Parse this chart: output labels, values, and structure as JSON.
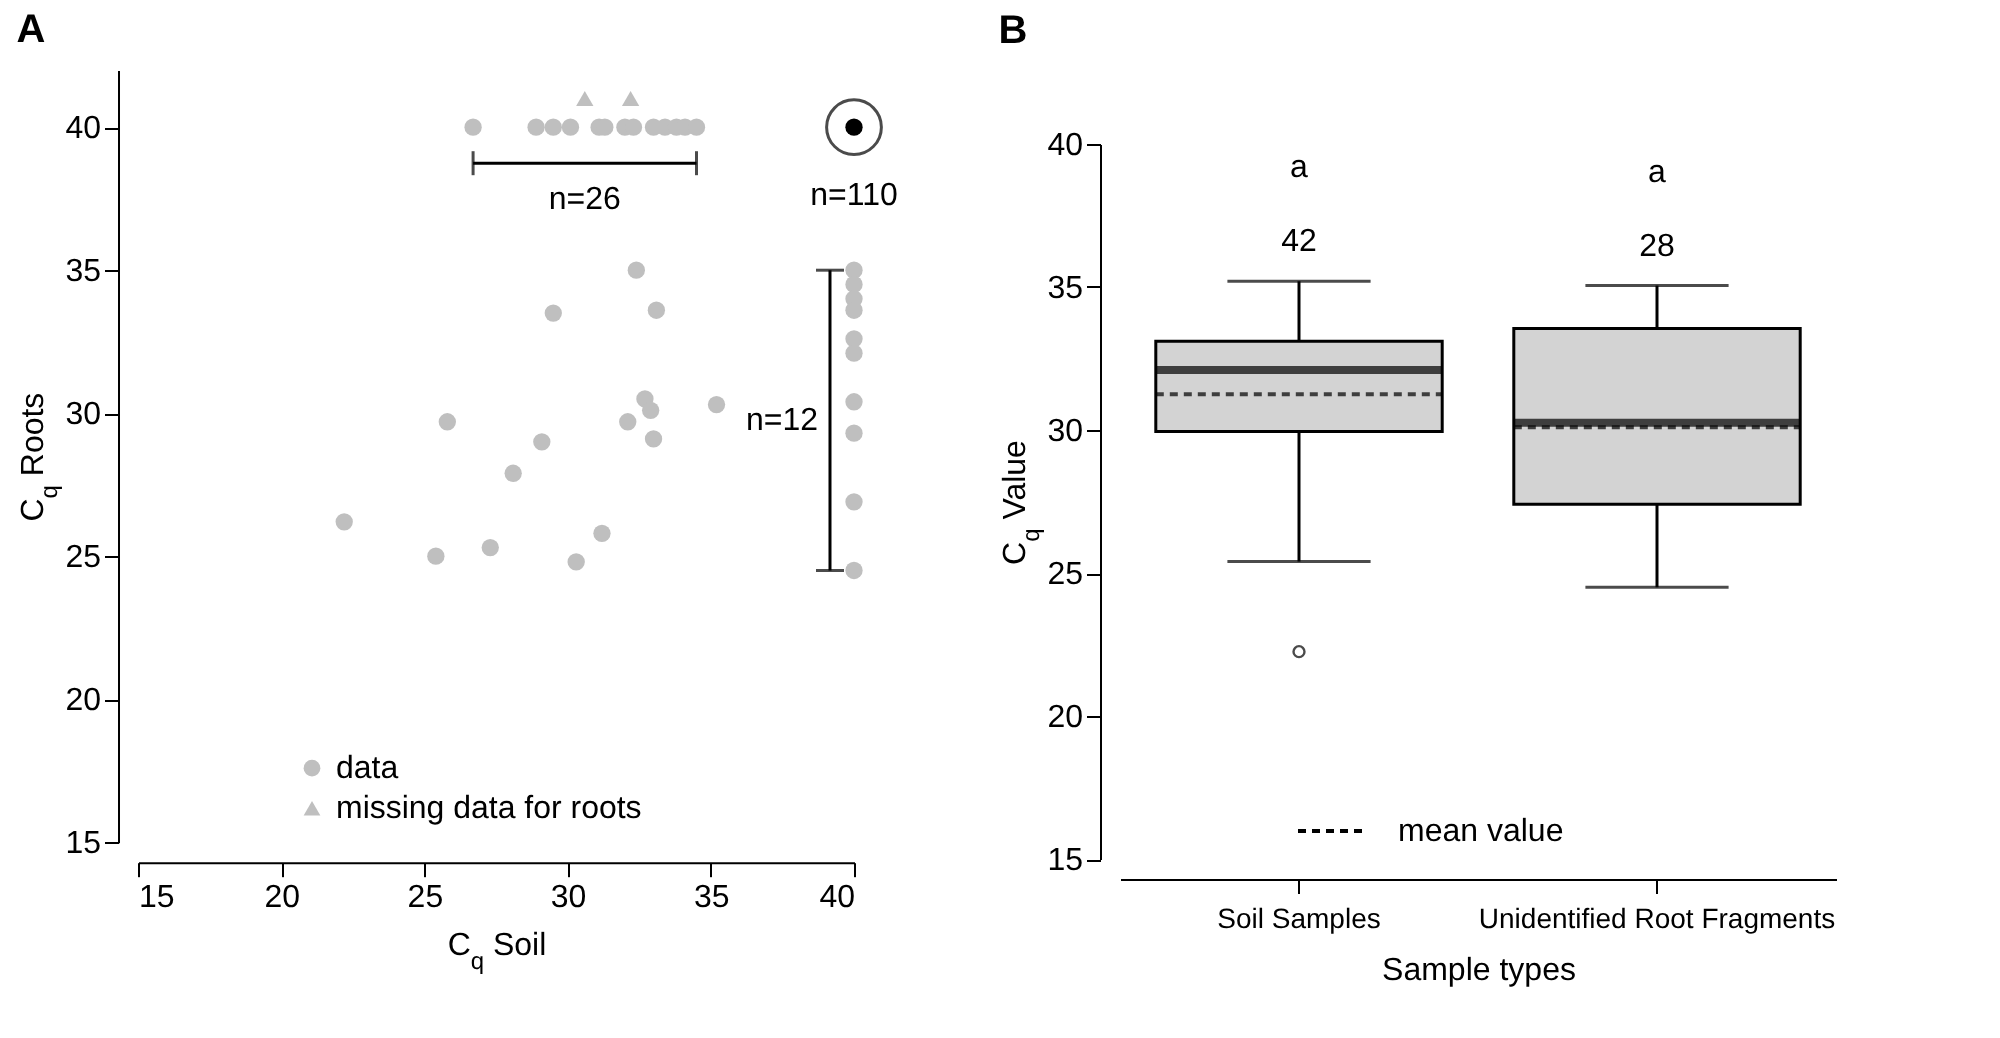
{
  "chart_data": [
    {
      "type": "scatter",
      "title": "A",
      "xlabel": "C$_{q}$ Soil",
      "ylabel": "C$_{q}$ Roots",
      "xlim": [
        15,
        40
      ],
      "ylim": [
        15,
        42
      ],
      "xticks": [
        15,
        20,
        25,
        30,
        35,
        40
      ],
      "yticks": [
        15,
        20,
        25,
        30,
        35,
        40
      ],
      "legend": "bottom",
      "marker": "circle",
      "series": [
        {
          "name": "data",
          "color": "#bfbfbf",
          "x": [
            32.4,
            29.5,
            33.1,
            32.7,
            32.9,
            35.2,
            25.8,
            32.1,
            33.0,
            29.1,
            28.1,
            22.2,
            25.4,
            27.3,
            31.2,
            30.3
          ],
          "values": [
            35.0,
            33.5,
            33.6,
            30.5,
            30.1,
            30.3,
            29.7,
            29.7,
            29.1,
            29.0,
            27.9,
            26.2,
            25.0,
            25.3,
            25.8,
            24.8
          ]
        },
        {
          "color": "#bfbfbf",
          "x": [
            26.7,
            28.9,
            29.5,
            30.1,
            31.1,
            31.3,
            32.0,
            32.3,
            33.0,
            33.4,
            33.8,
            34.1,
            34.5
          ],
          "values": [
            40,
            40,
            40,
            40,
            40,
            40,
            40,
            40,
            40,
            40,
            40,
            40,
            40
          ]
        },
        {
          "color": "#bfbfbf",
          "x": [
            40,
            40,
            40,
            40,
            40,
            40,
            40,
            40,
            40,
            40
          ],
          "values": [
            35.0,
            34.5,
            34.0,
            33.6,
            32.6,
            32.1,
            30.4,
            29.3,
            26.9,
            24.5
          ]
        },
        {
          "name": "missing data for roots",
          "color": "#bfbfbf",
          "marker": "triangle",
          "x": [
            30.6,
            32.2
          ],
          "values": [
            41,
            41
          ]
        },
        {
          "color": "#000000",
          "x": [
            40
          ],
          "values": [
            40
          ]
        }
      ],
      "annotations": [
        "n=26",
        "n=12",
        "n=110"
      ]
    },
    {
      "type": "box",
      "title": "B",
      "xlabel": "Sample types",
      "ylabel": "C$_{q}$ Value",
      "ylim": [
        15,
        40
      ],
      "yticks": [
        15,
        20,
        25,
        30,
        35,
        40
      ],
      "categories": [
        "Soil Samples",
        "Unidentified Root Fragments"
      ],
      "colors": [
        "#d3d3d3",
        "#d3d3d3"
      ],
      "boxes": [
        {
          "low": 25.4,
          "q1": 29.95,
          "median": 32.1,
          "q3": 33.1,
          "high": 35.2,
          "mean": 31.25,
          "outliers": [
            22.25
          ]
        },
        {
          "low": 24.5,
          "q1": 27.4,
          "median": 30.25,
          "q3": 33.55,
          "high": 35.05,
          "mean": 30.1
        }
      ],
      "annotations": [
        {
          "text": "42",
          "x": "Soil Samples",
          "y": 35.2
        },
        {
          "text": "28",
          "x": "Unidentified Root Fragments",
          "y": 35.05
        },
        "a",
        "a",
        "mean value"
      ]
    }
  ]
}
